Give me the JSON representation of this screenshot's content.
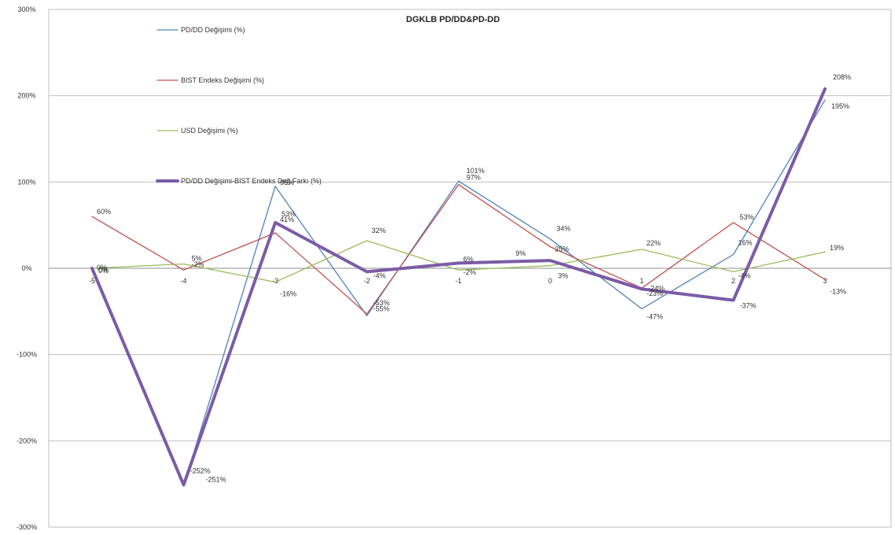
{
  "chart_data": {
    "type": "line",
    "title": "DGKLB PD/DD&PD-DD",
    "xlabel": "",
    "ylabel": "",
    "x": [
      "-5",
      "-4",
      "-3",
      "-2",
      "-1",
      "0",
      "1",
      "2",
      "3"
    ],
    "ylim": [
      -300,
      300
    ],
    "y_ticks": [
      300,
      200,
      100,
      0,
      -100,
      -200,
      -300
    ],
    "y_tick_labels": [
      "300%",
      "200%",
      "100%",
      "0%",
      "-100%",
      "-200%",
      "-300%"
    ],
    "grid": true,
    "legend_position": "top-left",
    "series": [
      {
        "name": "PD/DD Değişimi (%)",
        "color": "#4f81bd",
        "width": 1.3,
        "values": [
          0,
          -252,
          95,
          -55,
          101,
          34,
          -47,
          16,
          195
        ],
        "labels": [
          "0%",
          "-252%",
          "95%",
          "-55%",
          "101%",
          "34%",
          "-47%",
          "16%",
          "195%"
        ]
      },
      {
        "name": "BIST Endeks Değişimi (%)",
        "color": "#c0504d",
        "width": 1.3,
        "values": [
          60,
          -2,
          41,
          -53,
          97,
          25,
          -23,
          53,
          -13
        ],
        "labels": [
          "60%",
          "-2%",
          "41%",
          "-53%",
          "97%",
          "25%",
          "-23%",
          "53%",
          "-13%"
        ]
      },
      {
        "name": "USD Değişimi (%)",
        "color": "#9bbb59",
        "width": 1.3,
        "values": [
          0,
          5,
          -16,
          32,
          -2,
          3,
          22,
          -4,
          19
        ],
        "labels": [
          "0%",
          "5%",
          "-16%",
          "32%",
          "-2%",
          "3%",
          "22%",
          "-4%",
          "19%"
        ]
      },
      {
        "name": "PD/DD Değişimi-BIST Endeks Değ.Farkı (%)",
        "color": "#7b5ba6",
        "width": 4,
        "values": [
          0,
          -251,
          53,
          -4,
          6,
          9,
          -24,
          -37,
          208
        ],
        "labels": [
          "0%",
          "-251%",
          "53%",
          "-4%",
          "6%",
          "9%",
          "-24%",
          "-37%",
          "208%"
        ]
      }
    ]
  }
}
